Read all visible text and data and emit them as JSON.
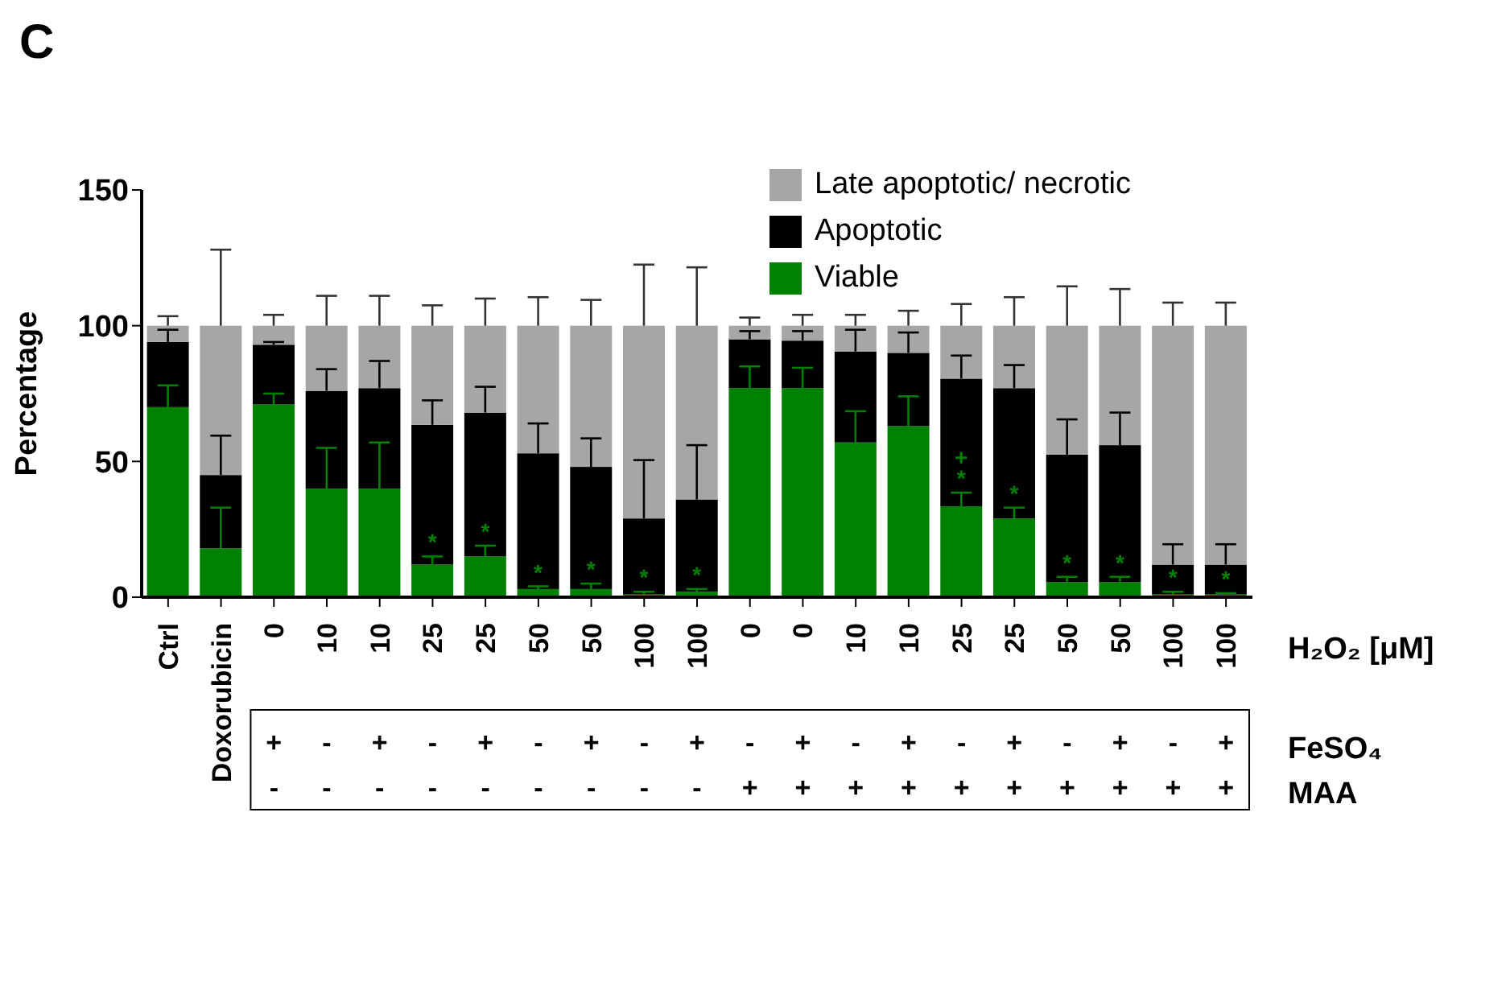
{
  "chart_data": {
    "type": "bar",
    "title": "C",
    "ylabel": "Percentage",
    "xlabel": "H₂O₂ [μM]",
    "categories": [
      "Ctrl",
      "Doxorubicin",
      "0",
      "10",
      "10",
      "25",
      "25",
      "50",
      "50",
      "100",
      "100",
      "0",
      "0",
      "10",
      "10",
      "25",
      "25",
      "50",
      "50",
      "100",
      "100"
    ],
    "stacked": true,
    "ylim": [
      0,
      150
    ],
    "yticks": [
      0,
      50,
      100,
      150
    ],
    "legend": "top right",
    "series": [
      {
        "name": "Viable",
        "color": "#008000",
        "values": [
          70,
          18,
          71,
          40,
          40,
          12,
          15,
          3,
          3,
          1,
          2,
          77,
          77,
          57,
          63,
          33.5,
          29,
          5.5,
          5.5,
          1,
          1
        ],
        "errors": [
          [
            70,
            78
          ],
          [
            18,
            33
          ],
          [
            71,
            75
          ],
          [
            40,
            55
          ],
          [
            40,
            57
          ],
          [
            12,
            15
          ],
          [
            15,
            19
          ],
          [
            3,
            4
          ],
          [
            3,
            5
          ],
          [
            1,
            2
          ],
          [
            2,
            3
          ],
          [
            77,
            85
          ],
          [
            77,
            84.5
          ],
          [
            57,
            68.5
          ],
          [
            63,
            74
          ],
          [
            33.5,
            38.5
          ],
          [
            29,
            33
          ],
          [
            5.5,
            7.5
          ],
          [
            5.5,
            7.5
          ],
          [
            1,
            2
          ],
          [
            1,
            1.5
          ]
        ],
        "value_labels": [
          null,
          null,
          null,
          null,
          null,
          "*",
          "*",
          "*",
          "*",
          "*",
          "*",
          null,
          null,
          null,
          null,
          "+\n*",
          "*",
          "*",
          "*",
          "*",
          "*"
        ]
      },
      {
        "name": "Apoptotic",
        "color": "#000000",
        "values": [
          24,
          27,
          22,
          36,
          37,
          51.5,
          53,
          50,
          45,
          28,
          34,
          18,
          17.5,
          33.5,
          27,
          47,
          48,
          47,
          50.5,
          11,
          11
        ],
        "errors": [
          [
            94,
            98.5
          ],
          [
            45,
            59.5
          ],
          [
            93,
            94
          ],
          [
            76,
            84
          ],
          [
            77,
            87
          ],
          [
            63.5,
            72.5
          ],
          [
            68,
            77.5
          ],
          [
            53,
            64
          ],
          [
            48,
            58.5
          ],
          [
            29,
            50.5
          ],
          [
            36,
            56
          ],
          [
            95,
            98
          ],
          [
            94.5,
            98
          ],
          [
            90.5,
            98.5
          ],
          [
            90,
            97.5
          ],
          [
            80.5,
            89
          ],
          [
            77,
            85.5
          ],
          [
            52.5,
            65.5
          ],
          [
            56,
            68
          ],
          [
            12,
            19.5
          ],
          [
            12,
            19.5
          ]
        ]
      },
      {
        "name": "Late apoptotic/ necrotic",
        "color": "#a6a6a8",
        "values": [
          6,
          55,
          7,
          24,
          23,
          36.5,
          32,
          47,
          52,
          71,
          64,
          5,
          5.5,
          9.5,
          10,
          19.5,
          23,
          47.5,
          44,
          88,
          88
        ],
        "errors": [
          [
            100,
            103.5
          ],
          [
            100,
            128
          ],
          [
            100,
            104
          ],
          [
            100,
            111
          ],
          [
            100,
            111
          ],
          [
            100,
            107.5
          ],
          [
            100,
            110
          ],
          [
            100,
            110.5
          ],
          [
            100,
            109.5
          ],
          [
            100,
            122.5
          ],
          [
            100,
            121.5
          ],
          [
            100,
            103
          ],
          [
            100,
            104
          ],
          [
            100,
            104
          ],
          [
            100,
            105.5
          ],
          [
            100,
            108
          ],
          [
            100,
            110.5
          ],
          [
            100,
            114.5
          ],
          [
            100,
            113.5
          ],
          [
            100,
            108.5
          ],
          [
            100,
            108.5
          ]
        ]
      }
    ],
    "annotations": [
      "FeSO₄",
      "+ - + - + - + - + - + - + - + - + - +",
      "MAA",
      "- - - - - - - - - + + + + + + + + + +"
    ]
  }
}
